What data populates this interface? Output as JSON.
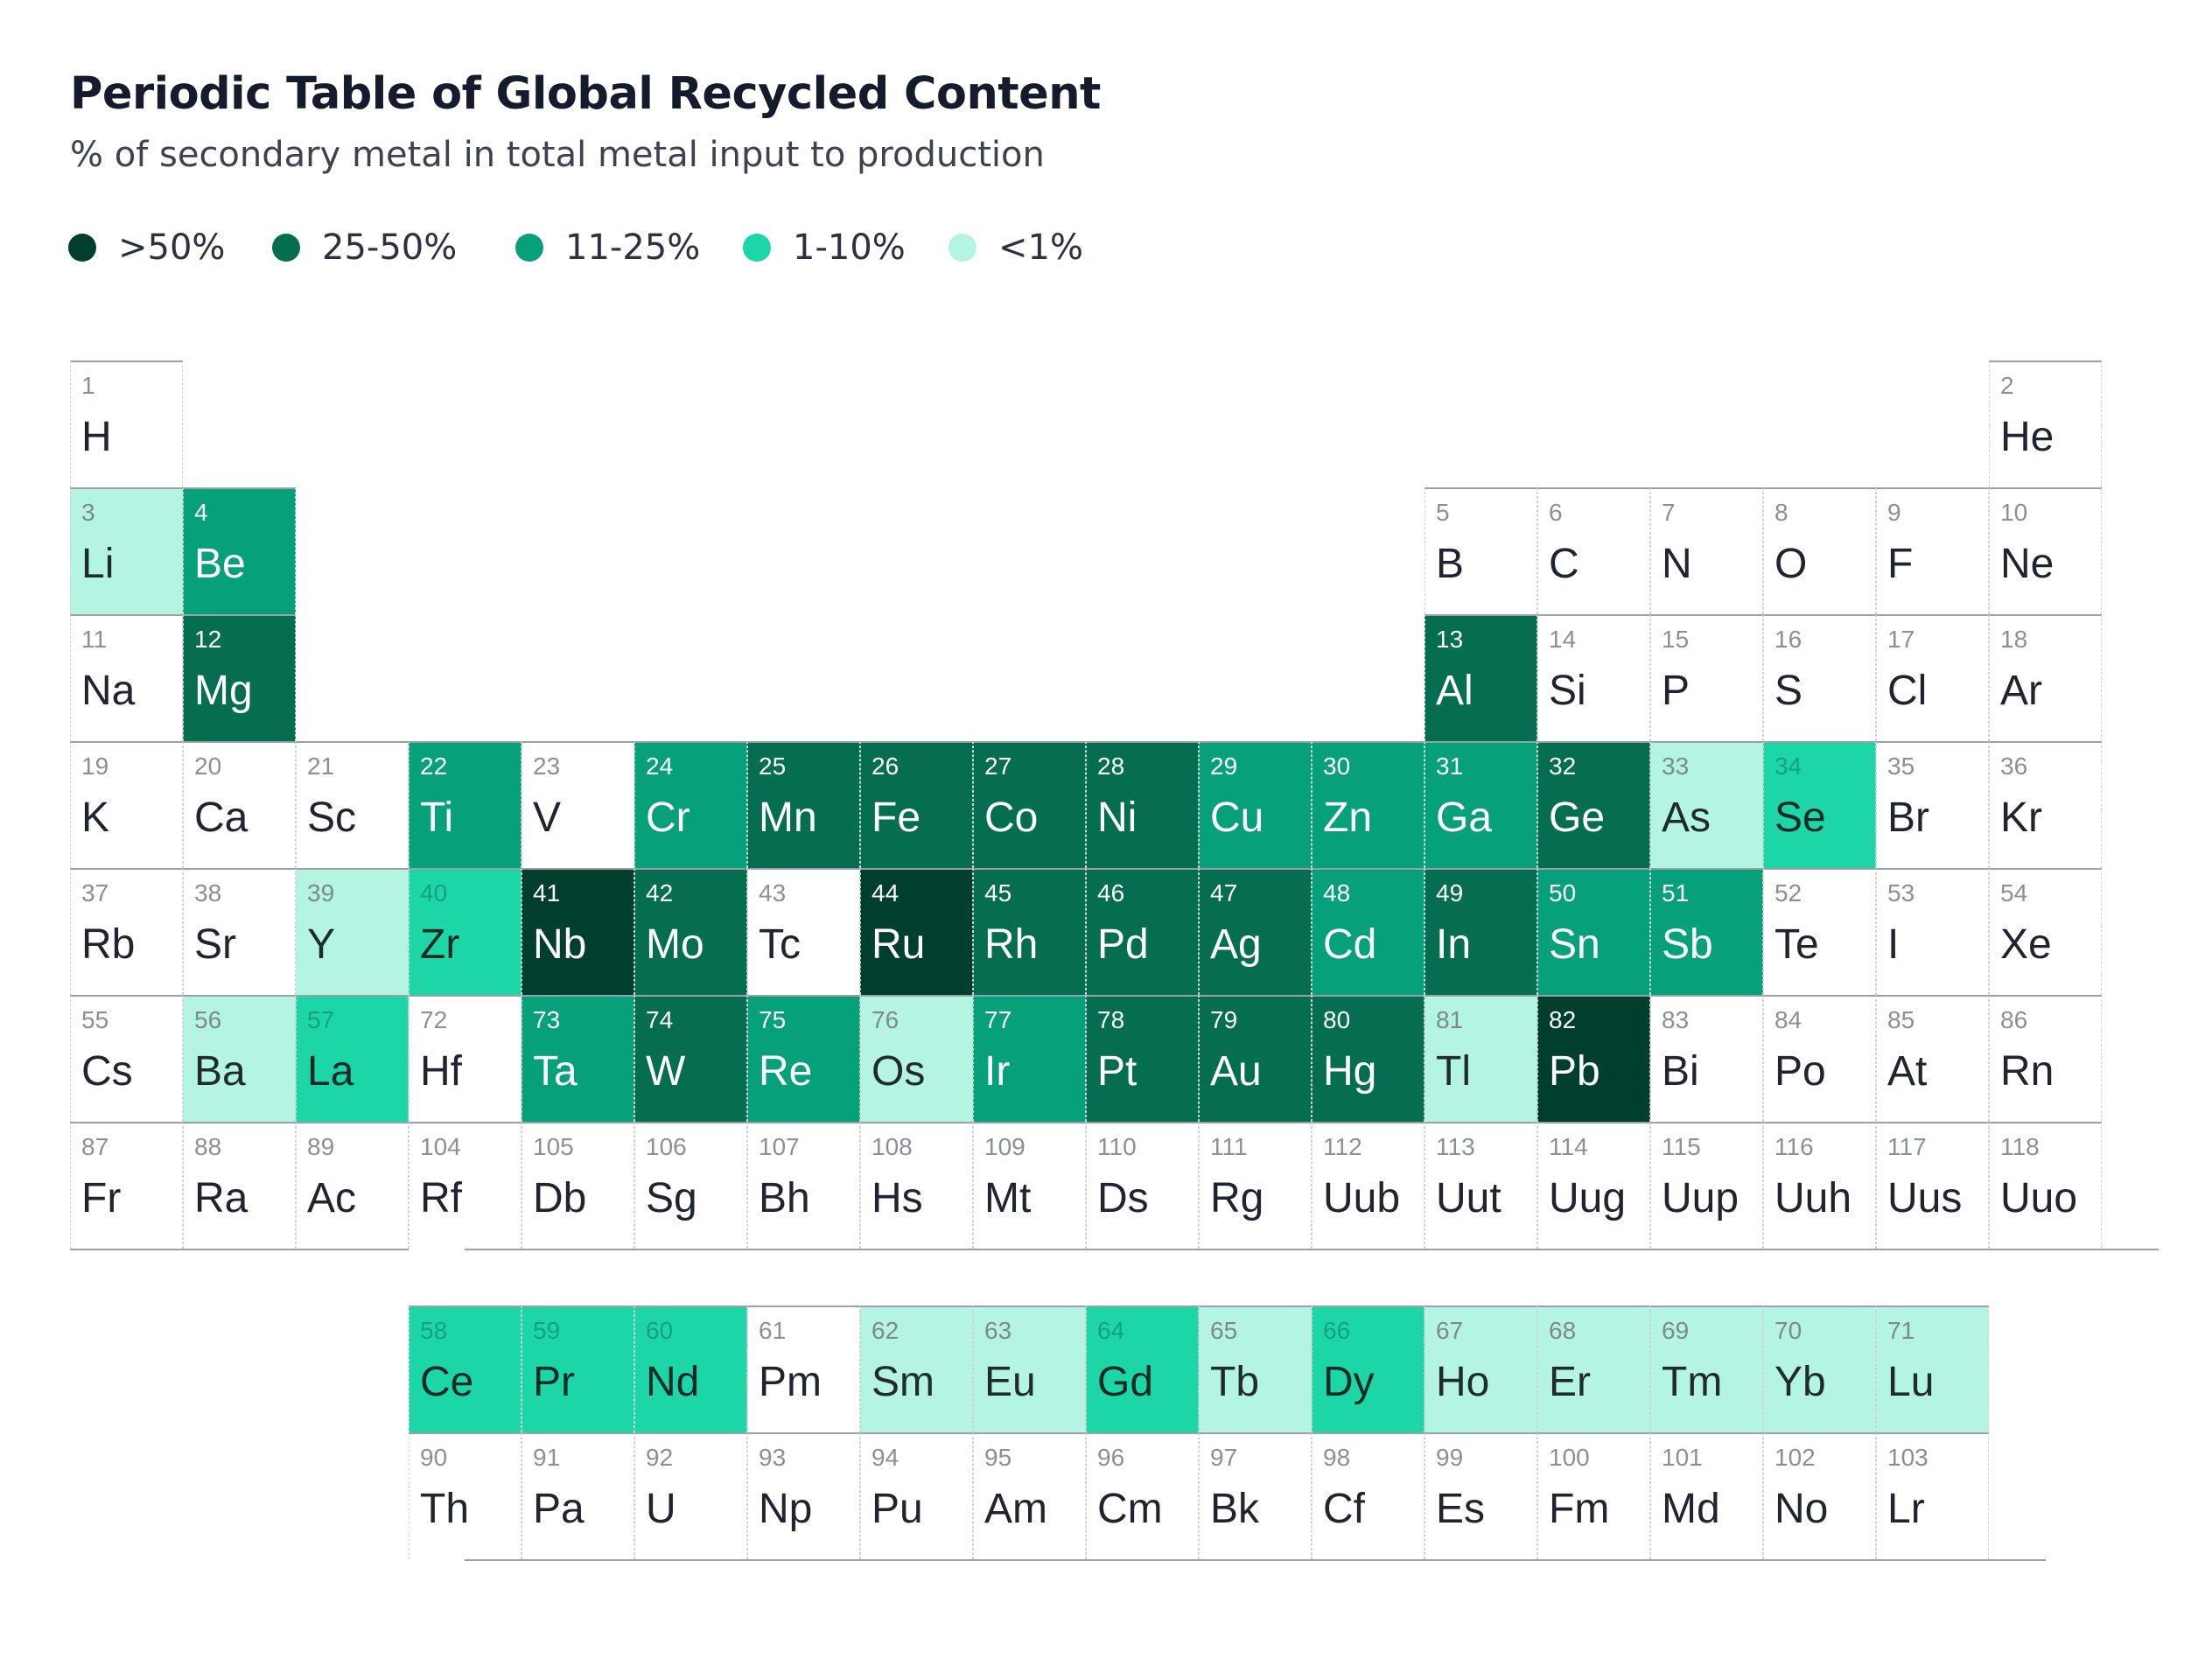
{
  "title": "Periodic Table of Global Recycled Content",
  "subtitle": "% of secondary metal in total metal input to production",
  "colors": {
    "gt50": "#003f2e",
    "p25_50": "#056e50",
    "p11_25": "#06a07a",
    "p1_10": "#1dd6a8",
    "lt1": "#b4f4e2",
    "none": "#ffffff"
  },
  "legend": [
    {
      "label": ">50%",
      "class": "gt50"
    },
    {
      "label": "25-50%",
      "class": "p25_50"
    },
    {
      "label": "11-25%",
      "class": "p11_25"
    },
    {
      "label": "1-10%",
      "class": "p1_10"
    },
    {
      "label": "<1%",
      "class": "lt1"
    }
  ],
  "chart_data": {
    "type": "heatmap",
    "title": "Periodic Table of Global Recycled Content",
    "subtitle": "% of secondary metal in total metal input to production",
    "categories": [
      ">50%",
      "25-50%",
      "11-25%",
      "1-10%",
      "<1%"
    ],
    "elements": [
      {
        "n": 1,
        "sym": "H",
        "row": 1,
        "col": 1,
        "cls": "none"
      },
      {
        "n": 2,
        "sym": "He",
        "row": 1,
        "col": 18,
        "cls": "none"
      },
      {
        "n": 3,
        "sym": "Li",
        "row": 2,
        "col": 1,
        "cls": "lt1"
      },
      {
        "n": 4,
        "sym": "Be",
        "row": 2,
        "col": 2,
        "cls": "p11_25"
      },
      {
        "n": 5,
        "sym": "B",
        "row": 2,
        "col": 13,
        "cls": "none"
      },
      {
        "n": 6,
        "sym": "C",
        "row": 2,
        "col": 14,
        "cls": "none"
      },
      {
        "n": 7,
        "sym": "N",
        "row": 2,
        "col": 15,
        "cls": "none"
      },
      {
        "n": 8,
        "sym": "O",
        "row": 2,
        "col": 16,
        "cls": "none"
      },
      {
        "n": 9,
        "sym": "F",
        "row": 2,
        "col": 17,
        "cls": "none"
      },
      {
        "n": 10,
        "sym": "Ne",
        "row": 2,
        "col": 18,
        "cls": "none"
      },
      {
        "n": 11,
        "sym": "Na",
        "row": 3,
        "col": 1,
        "cls": "none"
      },
      {
        "n": 12,
        "sym": "Mg",
        "row": 3,
        "col": 2,
        "cls": "p25_50"
      },
      {
        "n": 13,
        "sym": "Al",
        "row": 3,
        "col": 13,
        "cls": "p25_50"
      },
      {
        "n": 14,
        "sym": "Si",
        "row": 3,
        "col": 14,
        "cls": "none"
      },
      {
        "n": 15,
        "sym": "P",
        "row": 3,
        "col": 15,
        "cls": "none"
      },
      {
        "n": 16,
        "sym": "S",
        "row": 3,
        "col": 16,
        "cls": "none"
      },
      {
        "n": 17,
        "sym": "Cl",
        "row": 3,
        "col": 17,
        "cls": "none"
      },
      {
        "n": 18,
        "sym": "Ar",
        "row": 3,
        "col": 18,
        "cls": "none"
      },
      {
        "n": 19,
        "sym": "K",
        "row": 4,
        "col": 1,
        "cls": "none"
      },
      {
        "n": 20,
        "sym": "Ca",
        "row": 4,
        "col": 2,
        "cls": "none"
      },
      {
        "n": 21,
        "sym": "Sc",
        "row": 4,
        "col": 3,
        "cls": "none"
      },
      {
        "n": 22,
        "sym": "Ti",
        "row": 4,
        "col": 4,
        "cls": "p11_25"
      },
      {
        "n": 23,
        "sym": "V",
        "row": 4,
        "col": 5,
        "cls": "none"
      },
      {
        "n": 24,
        "sym": "Cr",
        "row": 4,
        "col": 6,
        "cls": "p11_25"
      },
      {
        "n": 25,
        "sym": "Mn",
        "row": 4,
        "col": 7,
        "cls": "p25_50"
      },
      {
        "n": 26,
        "sym": "Fe",
        "row": 4,
        "col": 8,
        "cls": "p25_50"
      },
      {
        "n": 27,
        "sym": "Co",
        "row": 4,
        "col": 9,
        "cls": "p25_50"
      },
      {
        "n": 28,
        "sym": "Ni",
        "row": 4,
        "col": 10,
        "cls": "p25_50"
      },
      {
        "n": 29,
        "sym": "Cu",
        "row": 4,
        "col": 11,
        "cls": "p11_25"
      },
      {
        "n": 30,
        "sym": "Zn",
        "row": 4,
        "col": 12,
        "cls": "p11_25"
      },
      {
        "n": 31,
        "sym": "Ga",
        "row": 4,
        "col": 13,
        "cls": "p11_25"
      },
      {
        "n": 32,
        "sym": "Ge",
        "row": 4,
        "col": 14,
        "cls": "p25_50"
      },
      {
        "n": 33,
        "sym": "As",
        "row": 4,
        "col": 15,
        "cls": "lt1"
      },
      {
        "n": 34,
        "sym": "Se",
        "row": 4,
        "col": 16,
        "cls": "p1_10"
      },
      {
        "n": 35,
        "sym": "Br",
        "row": 4,
        "col": 17,
        "cls": "none"
      },
      {
        "n": 36,
        "sym": "Kr",
        "row": 4,
        "col": 18,
        "cls": "none"
      },
      {
        "n": 37,
        "sym": "Rb",
        "row": 5,
        "col": 1,
        "cls": "none"
      },
      {
        "n": 38,
        "sym": "Sr",
        "row": 5,
        "col": 2,
        "cls": "none"
      },
      {
        "n": 39,
        "sym": "Y",
        "row": 5,
        "col": 3,
        "cls": "lt1"
      },
      {
        "n": 40,
        "sym": "Zr",
        "row": 5,
        "col": 4,
        "cls": "p1_10"
      },
      {
        "n": 41,
        "sym": "Nb",
        "row": 5,
        "col": 5,
        "cls": "gt50"
      },
      {
        "n": 42,
        "sym": "Mo",
        "row": 5,
        "col": 6,
        "cls": "p25_50"
      },
      {
        "n": 43,
        "sym": "Tc",
        "row": 5,
        "col": 7,
        "cls": "none"
      },
      {
        "n": 44,
        "sym": "Ru",
        "row": 5,
        "col": 8,
        "cls": "gt50"
      },
      {
        "n": 45,
        "sym": "Rh",
        "row": 5,
        "col": 9,
        "cls": "p25_50"
      },
      {
        "n": 46,
        "sym": "Pd",
        "row": 5,
        "col": 10,
        "cls": "p25_50"
      },
      {
        "n": 47,
        "sym": "Ag",
        "row": 5,
        "col": 11,
        "cls": "p25_50"
      },
      {
        "n": 48,
        "sym": "Cd",
        "row": 5,
        "col": 12,
        "cls": "p11_25"
      },
      {
        "n": 49,
        "sym": "In",
        "row": 5,
        "col": 13,
        "cls": "p25_50"
      },
      {
        "n": 50,
        "sym": "Sn",
        "row": 5,
        "col": 14,
        "cls": "p11_25"
      },
      {
        "n": 51,
        "sym": "Sb",
        "row": 5,
        "col": 15,
        "cls": "p11_25"
      },
      {
        "n": 52,
        "sym": "Te",
        "row": 5,
        "col": 16,
        "cls": "none"
      },
      {
        "n": 53,
        "sym": "I",
        "row": 5,
        "col": 17,
        "cls": "none"
      },
      {
        "n": 54,
        "sym": "Xe",
        "row": 5,
        "col": 18,
        "cls": "none"
      },
      {
        "n": 55,
        "sym": "Cs",
        "row": 6,
        "col": 1,
        "cls": "none"
      },
      {
        "n": 56,
        "sym": "Ba",
        "row": 6,
        "col": 2,
        "cls": "lt1"
      },
      {
        "n": 57,
        "sym": "La",
        "row": 6,
        "col": 3,
        "cls": "p1_10"
      },
      {
        "n": 72,
        "sym": "Hf",
        "row": 6,
        "col": 4,
        "cls": "none"
      },
      {
        "n": 73,
        "sym": "Ta",
        "row": 6,
        "col": 5,
        "cls": "p11_25"
      },
      {
        "n": 74,
        "sym": "W",
        "row": 6,
        "col": 6,
        "cls": "p25_50"
      },
      {
        "n": 75,
        "sym": "Re",
        "row": 6,
        "col": 7,
        "cls": "p11_25"
      },
      {
        "n": 76,
        "sym": "Os",
        "row": 6,
        "col": 8,
        "cls": "lt1"
      },
      {
        "n": 77,
        "sym": "Ir",
        "row": 6,
        "col": 9,
        "cls": "p11_25"
      },
      {
        "n": 78,
        "sym": "Pt",
        "row": 6,
        "col": 10,
        "cls": "p25_50"
      },
      {
        "n": 79,
        "sym": "Au",
        "row": 6,
        "col": 11,
        "cls": "p25_50"
      },
      {
        "n": 80,
        "sym": "Hg",
        "row": 6,
        "col": 12,
        "cls": "p25_50"
      },
      {
        "n": 81,
        "sym": "Tl",
        "row": 6,
        "col": 13,
        "cls": "lt1"
      },
      {
        "n": 82,
        "sym": "Pb",
        "row": 6,
        "col": 14,
        "cls": "gt50"
      },
      {
        "n": 83,
        "sym": "Bi",
        "row": 6,
        "col": 15,
        "cls": "none"
      },
      {
        "n": 84,
        "sym": "Po",
        "row": 6,
        "col": 16,
        "cls": "none"
      },
      {
        "n": 85,
        "sym": "At",
        "row": 6,
        "col": 17,
        "cls": "none"
      },
      {
        "n": 86,
        "sym": "Rn",
        "row": 6,
        "col": 18,
        "cls": "none"
      },
      {
        "n": 87,
        "sym": "Fr",
        "row": 7,
        "col": 1,
        "cls": "none"
      },
      {
        "n": 88,
        "sym": "Ra",
        "row": 7,
        "col": 2,
        "cls": "none"
      },
      {
        "n": 89,
        "sym": "Ac",
        "row": 7,
        "col": 3,
        "cls": "none"
      },
      {
        "n": 104,
        "sym": "Rf",
        "row": 7,
        "col": 4,
        "cls": "none"
      },
      {
        "n": 105,
        "sym": "Db",
        "row": 7,
        "col": 5,
        "cls": "none"
      },
      {
        "n": 106,
        "sym": "Sg",
        "row": 7,
        "col": 6,
        "cls": "none"
      },
      {
        "n": 107,
        "sym": "Bh",
        "row": 7,
        "col": 7,
        "cls": "none"
      },
      {
        "n": 108,
        "sym": "Hs",
        "row": 7,
        "col": 8,
        "cls": "none"
      },
      {
        "n": 109,
        "sym": "Mt",
        "row": 7,
        "col": 9,
        "cls": "none"
      },
      {
        "n": 110,
        "sym": "Ds",
        "row": 7,
        "col": 10,
        "cls": "none"
      },
      {
        "n": 111,
        "sym": "Rg",
        "row": 7,
        "col": 11,
        "cls": "none"
      },
      {
        "n": 112,
        "sym": "Uub",
        "row": 7,
        "col": 12,
        "cls": "none"
      },
      {
        "n": 113,
        "sym": "Uut",
        "row": 7,
        "col": 13,
        "cls": "none"
      },
      {
        "n": 114,
        "sym": "Uug",
        "row": 7,
        "col": 14,
        "cls": "none"
      },
      {
        "n": 115,
        "sym": "Uup",
        "row": 7,
        "col": 15,
        "cls": "none"
      },
      {
        "n": 116,
        "sym": "Uuh",
        "row": 7,
        "col": 16,
        "cls": "none"
      },
      {
        "n": 117,
        "sym": "Uus",
        "row": 7,
        "col": 17,
        "cls": "none"
      },
      {
        "n": 118,
        "sym": "Uuo",
        "row": 7,
        "col": 18,
        "cls": "none"
      },
      {
        "n": 58,
        "sym": "Ce",
        "row": 9,
        "col": 4,
        "cls": "p1_10"
      },
      {
        "n": 59,
        "sym": "Pr",
        "row": 9,
        "col": 5,
        "cls": "p1_10"
      },
      {
        "n": 60,
        "sym": "Nd",
        "row": 9,
        "col": 6,
        "cls": "p1_10"
      },
      {
        "n": 61,
        "sym": "Pm",
        "row": 9,
        "col": 7,
        "cls": "none"
      },
      {
        "n": 62,
        "sym": "Sm",
        "row": 9,
        "col": 8,
        "cls": "lt1"
      },
      {
        "n": 63,
        "sym": "Eu",
        "row": 9,
        "col": 9,
        "cls": "lt1"
      },
      {
        "n": 64,
        "sym": "Gd",
        "row": 9,
        "col": 10,
        "cls": "p1_10"
      },
      {
        "n": 65,
        "sym": "Tb",
        "row": 9,
        "col": 11,
        "cls": "lt1"
      },
      {
        "n": 66,
        "sym": "Dy",
        "row": 9,
        "col": 12,
        "cls": "p1_10"
      },
      {
        "n": 67,
        "sym": "Ho",
        "row": 9,
        "col": 13,
        "cls": "lt1"
      },
      {
        "n": 68,
        "sym": "Er",
        "row": 9,
        "col": 14,
        "cls": "lt1"
      },
      {
        "n": 69,
        "sym": "Tm",
        "row": 9,
        "col": 15,
        "cls": "lt1"
      },
      {
        "n": 70,
        "sym": "Yb",
        "row": 9,
        "col": 16,
        "cls": "lt1"
      },
      {
        "n": 71,
        "sym": "Lu",
        "row": 9,
        "col": 17,
        "cls": "lt1"
      },
      {
        "n": 90,
        "sym": "Th",
        "row": 10,
        "col": 4,
        "cls": "none"
      },
      {
        "n": 91,
        "sym": "Pa",
        "row": 10,
        "col": 5,
        "cls": "none"
      },
      {
        "n": 92,
        "sym": "U",
        "row": 10,
        "col": 6,
        "cls": "none"
      },
      {
        "n": 93,
        "sym": "Np",
        "row": 10,
        "col": 7,
        "cls": "none"
      },
      {
        "n": 94,
        "sym": "Pu",
        "row": 10,
        "col": 8,
        "cls": "none"
      },
      {
        "n": 95,
        "sym": "Am",
        "row": 10,
        "col": 9,
        "cls": "none"
      },
      {
        "n": 96,
        "sym": "Cm",
        "row": 10,
        "col": 10,
        "cls": "none"
      },
      {
        "n": 97,
        "sym": "Bk",
        "row": 10,
        "col": 11,
        "cls": "none"
      },
      {
        "n": 98,
        "sym": "Cf",
        "row": 10,
        "col": 12,
        "cls": "none"
      },
      {
        "n": 99,
        "sym": "Es",
        "row": 10,
        "col": 13,
        "cls": "none"
      },
      {
        "n": 100,
        "sym": "Fm",
        "row": 10,
        "col": 14,
        "cls": "none"
      },
      {
        "n": 101,
        "sym": "Md",
        "row": 10,
        "col": 15,
        "cls": "none"
      },
      {
        "n": 102,
        "sym": "No",
        "row": 10,
        "col": 16,
        "cls": "none"
      },
      {
        "n": 103,
        "sym": "Lr",
        "row": 10,
        "col": 17,
        "cls": "none"
      }
    ]
  }
}
